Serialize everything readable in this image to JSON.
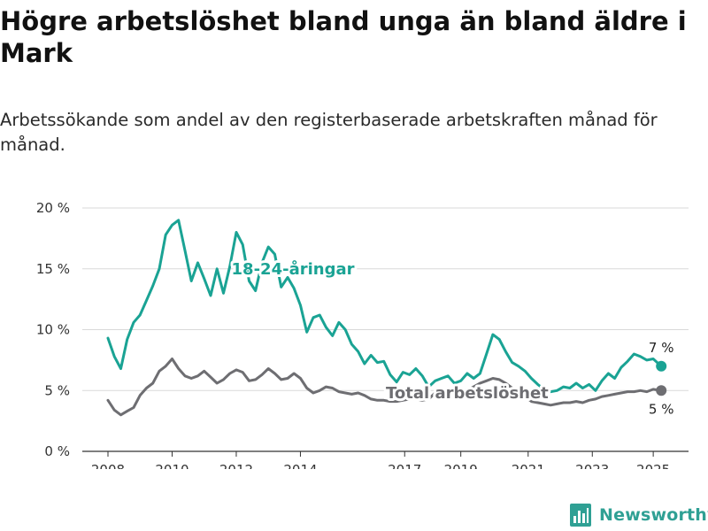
{
  "title": "Högre arbetslöshet bland unga än bland äldre i Mark",
  "subtitle": "Arbetssökande som andel av den registerbaserade arbetskraften månad för månad.",
  "brand": {
    "name": "Newsworthy",
    "icon": "bar-chart-icon",
    "color": "#2fa094"
  },
  "chart_data": {
    "type": "line",
    "x_ticks": [
      "2008",
      "2010",
      "2012",
      "2014",
      "2017",
      "2019",
      "2021",
      "2023",
      "2025"
    ],
    "x_tick_values": [
      2008,
      2010,
      2012,
      2014,
      2017.25,
      2019,
      2021.1,
      2023.1,
      2025
    ],
    "y_ticks": [
      "0 %",
      "5 %",
      "10 %",
      "15 %",
      "20 %"
    ],
    "y_tick_values": [
      0,
      5,
      10,
      15,
      20
    ],
    "xlim": [
      2007.2,
      2026.1
    ],
    "ylim": [
      0,
      20
    ],
    "grid": true,
    "series": [
      {
        "name": "18-24-åringar",
        "color": "#1aa394",
        "end_label": "7 %",
        "x": [
          2008.0,
          2008.2,
          2008.4,
          2008.6,
          2008.8,
          2009.0,
          2009.2,
          2009.4,
          2009.6,
          2009.8,
          2010.0,
          2010.2,
          2010.4,
          2010.6,
          2010.8,
          2011.0,
          2011.2,
          2011.4,
          2011.6,
          2011.8,
          2012.0,
          2012.2,
          2012.4,
          2012.6,
          2012.8,
          2013.0,
          2013.2,
          2013.4,
          2013.6,
          2013.8,
          2014.0,
          2014.2,
          2014.4,
          2014.6,
          2014.8,
          2015.0,
          2015.2,
          2015.4,
          2015.6,
          2015.8,
          2016.0,
          2016.2,
          2016.4,
          2016.6,
          2016.8,
          2017.0,
          2017.2,
          2017.4,
          2017.6,
          2017.8,
          2018.0,
          2018.2,
          2018.4,
          2018.6,
          2018.8,
          2019.0,
          2019.2,
          2019.4,
          2019.6,
          2019.8,
          2020.0,
          2020.2,
          2020.4,
          2020.6,
          2020.8,
          2021.0,
          2021.2,
          2021.4,
          2021.6,
          2021.8,
          2022.0,
          2022.2,
          2022.4,
          2022.6,
          2022.8,
          2023.0,
          2023.2,
          2023.4,
          2023.6,
          2023.8,
          2024.0,
          2024.2,
          2024.4,
          2024.6,
          2024.8,
          2025.0,
          2025.25
        ],
        "y": [
          9.3,
          7.8,
          6.8,
          9.2,
          10.6,
          11.2,
          12.4,
          13.6,
          15.0,
          17.8,
          18.6,
          19.0,
          16.5,
          14.0,
          15.5,
          14.2,
          12.8,
          15.0,
          13.0,
          15.2,
          18.0,
          17.0,
          14.0,
          13.2,
          15.5,
          16.8,
          16.2,
          13.5,
          14.3,
          13.4,
          12.0,
          9.8,
          11.0,
          11.2,
          10.2,
          9.5,
          10.6,
          10.0,
          8.8,
          8.2,
          7.2,
          7.9,
          7.3,
          7.4,
          6.3,
          5.7,
          6.5,
          6.3,
          6.8,
          6.2,
          5.3,
          5.8,
          6.0,
          6.2,
          5.6,
          5.8,
          6.4,
          6.0,
          6.4,
          8.0,
          9.6,
          9.2,
          8.2,
          7.3,
          7.0,
          6.6,
          6.0,
          5.5,
          5.1,
          4.9,
          5.0,
          5.3,
          5.2,
          5.6,
          5.2,
          5.5,
          5.0,
          5.8,
          6.4,
          6.0,
          6.9,
          7.4,
          8.0,
          7.8,
          7.5,
          7.6,
          7.0
        ]
      },
      {
        "name": "Total arbetslöshet",
        "color": "#6e6e72",
        "end_label": "5 %",
        "x": [
          2008.0,
          2008.2,
          2008.4,
          2008.6,
          2008.8,
          2009.0,
          2009.2,
          2009.4,
          2009.6,
          2009.8,
          2010.0,
          2010.2,
          2010.4,
          2010.6,
          2010.8,
          2011.0,
          2011.2,
          2011.4,
          2011.6,
          2011.8,
          2012.0,
          2012.2,
          2012.4,
          2012.6,
          2012.8,
          2013.0,
          2013.2,
          2013.4,
          2013.6,
          2013.8,
          2014.0,
          2014.2,
          2014.4,
          2014.6,
          2014.8,
          2015.0,
          2015.2,
          2015.4,
          2015.6,
          2015.8,
          2016.0,
          2016.2,
          2016.4,
          2016.6,
          2016.8,
          2017.0,
          2017.2,
          2017.4,
          2017.6,
          2017.8,
          2018.0,
          2018.2,
          2018.4,
          2018.6,
          2018.8,
          2019.0,
          2019.2,
          2019.4,
          2019.6,
          2019.8,
          2020.0,
          2020.2,
          2020.4,
          2020.6,
          2020.8,
          2021.0,
          2021.2,
          2021.4,
          2021.6,
          2021.8,
          2022.0,
          2022.2,
          2022.4,
          2022.6,
          2022.8,
          2023.0,
          2023.2,
          2023.4,
          2023.6,
          2023.8,
          2024.0,
          2024.2,
          2024.4,
          2024.6,
          2024.8,
          2025.0,
          2025.25
        ],
        "y": [
          4.2,
          3.4,
          3.0,
          3.3,
          3.6,
          4.6,
          5.2,
          5.6,
          6.6,
          7.0,
          7.6,
          6.8,
          6.2,
          6.0,
          6.2,
          6.6,
          6.1,
          5.6,
          5.9,
          6.4,
          6.7,
          6.5,
          5.8,
          5.9,
          6.3,
          6.8,
          6.4,
          5.9,
          6.0,
          6.4,
          6.0,
          5.2,
          4.8,
          5.0,
          5.3,
          5.2,
          4.9,
          4.8,
          4.7,
          4.8,
          4.6,
          4.3,
          4.2,
          4.2,
          4.1,
          4.1,
          4.2,
          4.3,
          4.3,
          4.2,
          4.3,
          4.8,
          5.0,
          5.1,
          5.0,
          5.1,
          5.0,
          5.3,
          5.6,
          5.8,
          6.0,
          5.9,
          5.6,
          5.2,
          4.9,
          4.5,
          4.1,
          4.0,
          3.9,
          3.8,
          3.9,
          4.0,
          4.0,
          4.1,
          4.0,
          4.2,
          4.3,
          4.5,
          4.6,
          4.7,
          4.8,
          4.9,
          4.9,
          5.0,
          4.9,
          5.1,
          5.0
        ]
      }
    ]
  }
}
